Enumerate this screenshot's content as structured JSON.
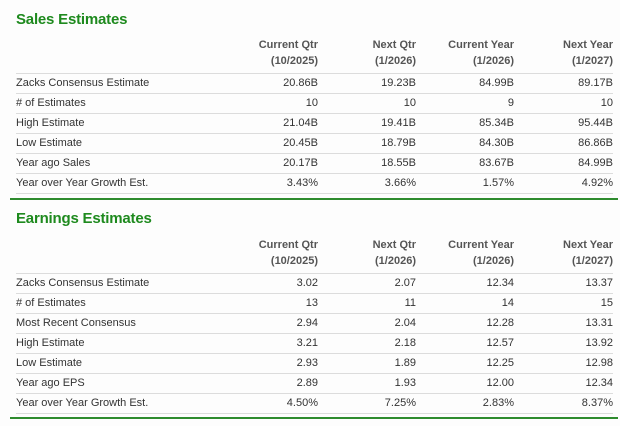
{
  "columns": [
    {
      "name": "Current Qtr",
      "period": "(10/2025)"
    },
    {
      "name": "Next Qtr",
      "period": "(1/2026)"
    },
    {
      "name": "Current Year",
      "period": "(1/2026)"
    },
    {
      "name": "Next Year",
      "period": "(1/2027)"
    }
  ],
  "sales": {
    "title": "Sales Estimates",
    "rows": [
      {
        "label": "Zacks Consensus Estimate",
        "values": [
          "20.86B",
          "19.23B",
          "84.99B",
          "89.17B"
        ]
      },
      {
        "label": "# of Estimates",
        "values": [
          "10",
          "10",
          "9",
          "10"
        ]
      },
      {
        "label": "High Estimate",
        "values": [
          "21.04B",
          "19.41B",
          "85.34B",
          "95.44B"
        ]
      },
      {
        "label": "Low Estimate",
        "values": [
          "20.45B",
          "18.79B",
          "84.30B",
          "86.86B"
        ]
      },
      {
        "label": "Year ago Sales",
        "values": [
          "20.17B",
          "18.55B",
          "83.67B",
          "84.99B"
        ]
      },
      {
        "label": "Year over Year Growth Est.",
        "values": [
          "3.43%",
          "3.66%",
          "1.57%",
          "4.92%"
        ]
      }
    ]
  },
  "earnings": {
    "title": "Earnings Estimates",
    "rows": [
      {
        "label": "Zacks Consensus Estimate",
        "values": [
          "3.02",
          "2.07",
          "12.34",
          "13.37"
        ]
      },
      {
        "label": "# of Estimates",
        "values": [
          "13",
          "11",
          "14",
          "15"
        ]
      },
      {
        "label": "Most Recent Consensus",
        "values": [
          "2.94",
          "2.04",
          "12.28",
          "13.31"
        ]
      },
      {
        "label": "High Estimate",
        "values": [
          "3.21",
          "2.18",
          "12.57",
          "13.92"
        ]
      },
      {
        "label": "Low Estimate",
        "values": [
          "2.93",
          "1.89",
          "12.25",
          "12.98"
        ]
      },
      {
        "label": "Year ago EPS",
        "values": [
          "2.89",
          "1.93",
          "12.00",
          "12.34"
        ]
      },
      {
        "label": "Year over Year Growth Est.",
        "values": [
          "4.50%",
          "7.25%",
          "2.83%",
          "8.37%"
        ]
      }
    ]
  },
  "colors": {
    "accent": "#1e8a1e",
    "rule": "#2e8b2e",
    "border": "#dcdcdc"
  }
}
